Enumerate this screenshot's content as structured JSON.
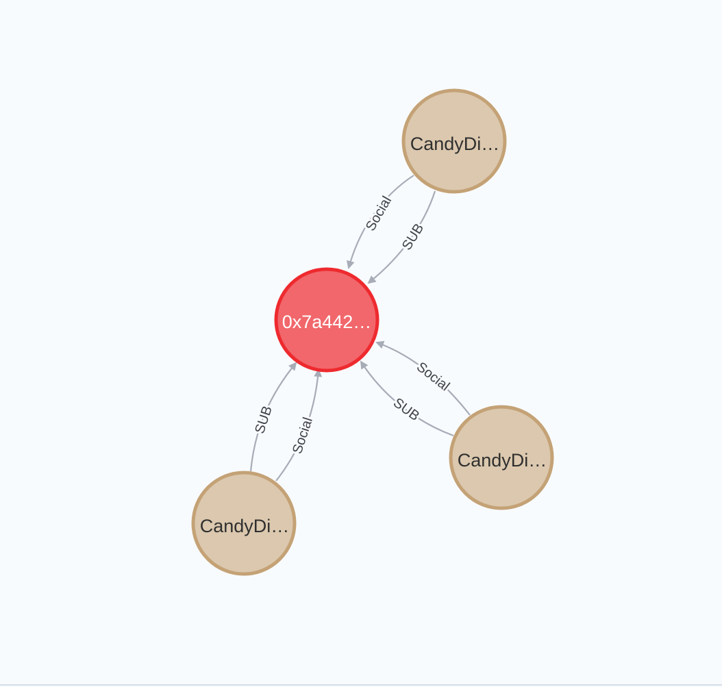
{
  "graph": {
    "colors": {
      "background": "#f8fbfe",
      "edge": "#a7acb6",
      "edge_label": "#3e4147",
      "center_fill": "#f1676b",
      "center_stroke": "#ee2a2f",
      "center_text": "#ffffff",
      "peer_fill": "#dbc8ae",
      "peer_stroke": "#c4a276",
      "peer_text": "#2f2f2f"
    },
    "nodes": {
      "center": {
        "label": "0x7a442…"
      },
      "peer_top": {
        "label": "CandyDi…"
      },
      "peer_right": {
        "label": "CandyDi…"
      },
      "peer_left": {
        "label": "CandyDi…"
      }
    },
    "edges": [
      {
        "id": "top-social",
        "source": "peer_top",
        "target": "center",
        "label": "Social"
      },
      {
        "id": "top-sub",
        "source": "peer_top",
        "target": "center",
        "label": "SUB"
      },
      {
        "id": "right-social",
        "source": "peer_right",
        "target": "center",
        "label": "Social"
      },
      {
        "id": "right-sub",
        "source": "peer_right",
        "target": "center",
        "label": "SUB"
      },
      {
        "id": "left-sub",
        "source": "peer_left",
        "target": "center",
        "label": "SUB"
      },
      {
        "id": "left-social",
        "source": "peer_left",
        "target": "center",
        "label": "Social"
      }
    ]
  }
}
